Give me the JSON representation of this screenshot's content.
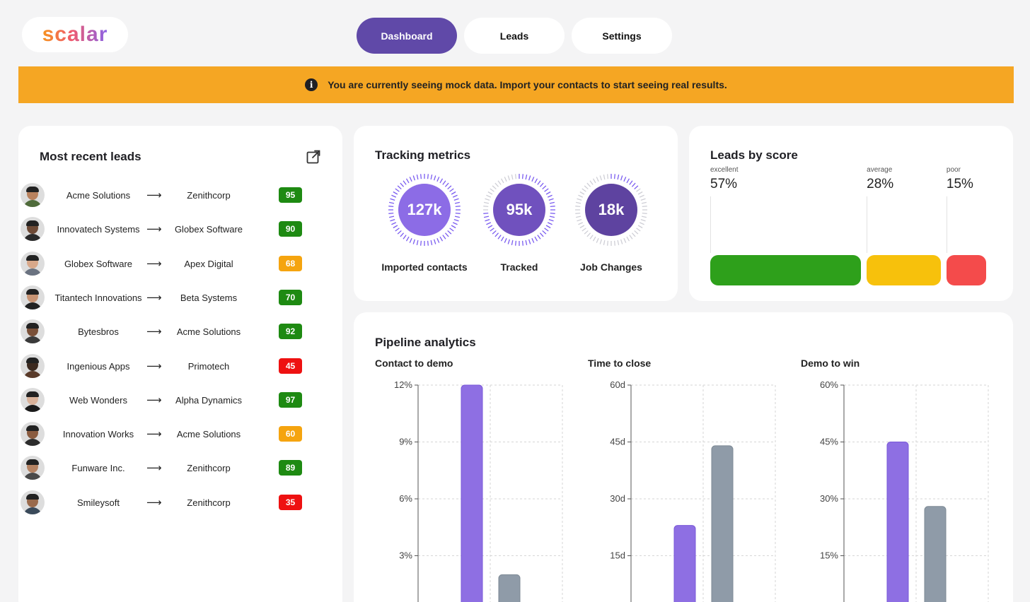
{
  "brand": {
    "name": "scalar"
  },
  "nav": {
    "items": [
      {
        "label": "Dashboard",
        "active": true
      },
      {
        "label": "Leads",
        "active": false
      },
      {
        "label": "Settings",
        "active": false
      }
    ]
  },
  "banner": {
    "icon": "info-icon",
    "text": "You are currently seeing mock data. Import your contacts to start seeing real results."
  },
  "leads": {
    "title": "Most recent leads",
    "rows": [
      {
        "from": "Acme Solutions",
        "to": "Zenithcorp",
        "score": "95",
        "level": "good"
      },
      {
        "from": "Innovatech Systems",
        "to": "Globex Software",
        "score": "90",
        "level": "good"
      },
      {
        "from": "Globex Software",
        "to": "Apex Digital",
        "score": "68",
        "level": "average"
      },
      {
        "from": "Titantech Innovations",
        "to": "Beta Systems",
        "score": "70",
        "level": "good"
      },
      {
        "from": "Bytesbros",
        "to": "Acme Solutions",
        "score": "92",
        "level": "good"
      },
      {
        "from": "Ingenious Apps",
        "to": "Primotech",
        "score": "45",
        "level": "poor"
      },
      {
        "from": "Web Wonders",
        "to": "Alpha Dynamics",
        "score": "97",
        "level": "good"
      },
      {
        "from": "Innovation Works",
        "to": "Acme Solutions",
        "score": "60",
        "level": "average"
      },
      {
        "from": "Funware Inc.",
        "to": "Zenithcorp",
        "score": "89",
        "level": "good"
      },
      {
        "from": "Smileysoft",
        "to": "Zenithcorp",
        "score": "35",
        "level": "poor"
      }
    ],
    "arrow": "⟶"
  },
  "colors": {
    "good": "#1e8a12",
    "average": "#f5a40f",
    "poor": "#ee1111",
    "accent": "#6049a8",
    "purple_bar": "#8e6fe3",
    "gray_bar": "#8f9ba8"
  },
  "tracking": {
    "title": "Tracking metrics",
    "metrics": [
      {
        "value": "127k",
        "label": "Imported contacts",
        "progress": 1.0,
        "fill": "#8c6ce6"
      },
      {
        "value": "95k",
        "label": "Tracked",
        "progress": 0.75,
        "fill": "#7051be"
      },
      {
        "value": "18k",
        "label": "Job Changes",
        "progress": 0.15,
        "fill": "#5e43a0"
      }
    ]
  },
  "score_dist": {
    "title": "Leads by score",
    "segments": [
      {
        "name": "excellent",
        "pct": "57%",
        "value": 57,
        "color": "#2ea01b"
      },
      {
        "name": "average",
        "pct": "28%",
        "value": 28,
        "color": "#f7c10c"
      },
      {
        "name": "poor",
        "pct": "15%",
        "value": 15,
        "color": "#f44b4b"
      }
    ]
  },
  "pipeline": {
    "title": "Pipeline analytics",
    "charts": [
      {
        "title": "Contact to demo",
        "ticks": [
          "12%",
          "9%",
          "6%",
          "3%"
        ]
      },
      {
        "title": "Time to close",
        "ticks": [
          "60d",
          "45d",
          "30d",
          "15d"
        ]
      },
      {
        "title": "Demo to win",
        "ticks": [
          "60%",
          "45%",
          "30%",
          "15%"
        ]
      }
    ]
  },
  "chart_data": [
    {
      "type": "bar",
      "title": "Contact to demo",
      "ylim": [
        0,
        12
      ],
      "y_unit": "%",
      "series": [
        {
          "values": [
            12
          ]
        },
        {
          "values": [
            2
          ]
        }
      ]
    },
    {
      "type": "bar",
      "title": "Time to close",
      "ylim": [
        0,
        60
      ],
      "y_unit": "d",
      "series": [
        {
          "values": [
            23
          ]
        },
        {
          "values": [
            44
          ]
        }
      ]
    },
    {
      "type": "bar",
      "title": "Demo to win",
      "ylim": [
        0,
        60
      ],
      "y_unit": "%",
      "series": [
        {
          "values": [
            45
          ]
        },
        {
          "values": [
            28
          ]
        }
      ]
    }
  ]
}
